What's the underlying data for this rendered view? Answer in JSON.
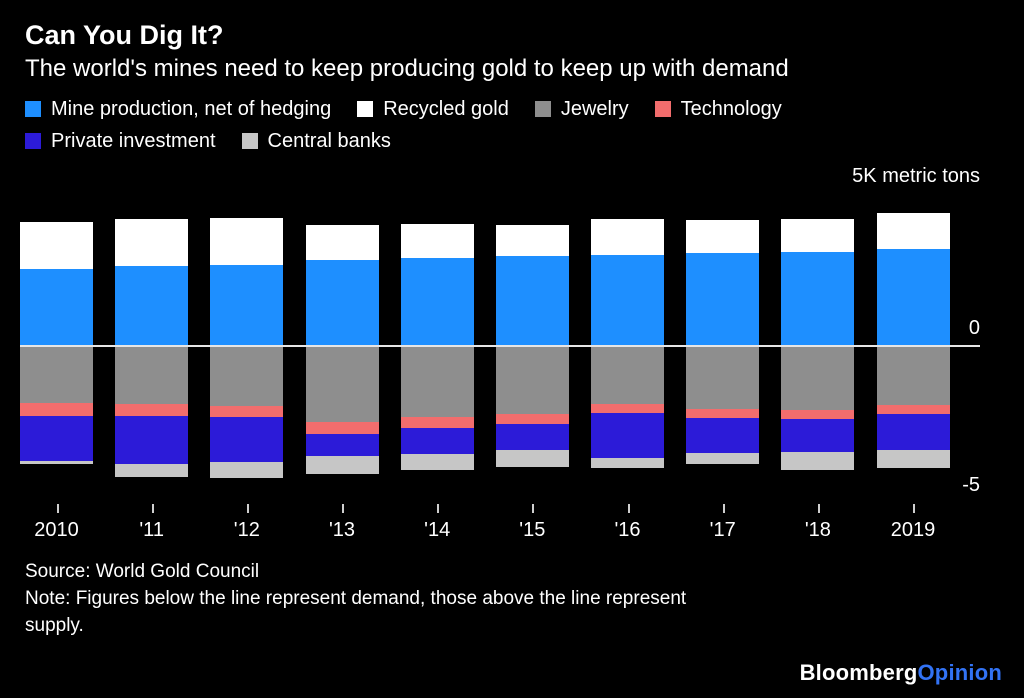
{
  "header": {
    "title": "Can You Dig It?",
    "subtitle": "The world's mines need to keep producing gold to keep up with demand"
  },
  "chart_data": {
    "type": "bar",
    "stacked": true,
    "diverging": true,
    "unit": "K metric tons",
    "title": "Can You Dig It?",
    "categories": [
      "2010",
      "'11",
      "'12",
      "'13",
      "'14",
      "'15",
      "'16",
      "'17",
      "'18",
      "2019"
    ],
    "ylim": [
      -5,
      5
    ],
    "y_tick_labels": [
      "5K metric tons",
      "0",
      "-5"
    ],
    "grid": "zero-line-only",
    "legend_position": "top",
    "series": [
      {
        "name": "Mine production, net of hedging",
        "direction": "supply",
        "color": "#1e8fff",
        "values": [
          2.74,
          2.85,
          2.87,
          3.07,
          3.15,
          3.21,
          3.26,
          3.32,
          3.35,
          3.46
        ]
      },
      {
        "name": "Recycled gold",
        "direction": "supply",
        "color": "#ffffff",
        "values": [
          1.68,
          1.67,
          1.7,
          1.25,
          1.19,
          1.12,
          1.28,
          1.16,
          1.17,
          1.3
        ]
      },
      {
        "name": "Jewelry",
        "direction": "demand",
        "color": "#8e8e8e",
        "values": [
          2.05,
          2.09,
          2.14,
          2.73,
          2.54,
          2.42,
          2.07,
          2.26,
          2.29,
          2.12
        ]
      },
      {
        "name": "Technology",
        "direction": "demand",
        "color": "#f26d6d",
        "values": [
          0.46,
          0.43,
          0.41,
          0.41,
          0.4,
          0.36,
          0.32,
          0.33,
          0.33,
          0.33
        ]
      },
      {
        "name": "Private investment",
        "direction": "demand",
        "color": "#2c1bd8",
        "values": [
          1.62,
          1.7,
          1.59,
          0.8,
          0.91,
          0.95,
          1.6,
          1.25,
          1.16,
          1.27
        ]
      },
      {
        "name": "Central banks",
        "direction": "demand",
        "color": "#c6c6c6",
        "values": [
          0.08,
          0.48,
          0.57,
          0.62,
          0.6,
          0.58,
          0.39,
          0.38,
          0.66,
          0.65
        ]
      }
    ]
  },
  "footer": {
    "source": "Source: World Gold Council",
    "note_line1": "Note: Figures below the line represent demand, those above the line represent",
    "note_line2": "supply.",
    "brand_primary": "Bloomberg",
    "brand_accent": "Opinion"
  }
}
